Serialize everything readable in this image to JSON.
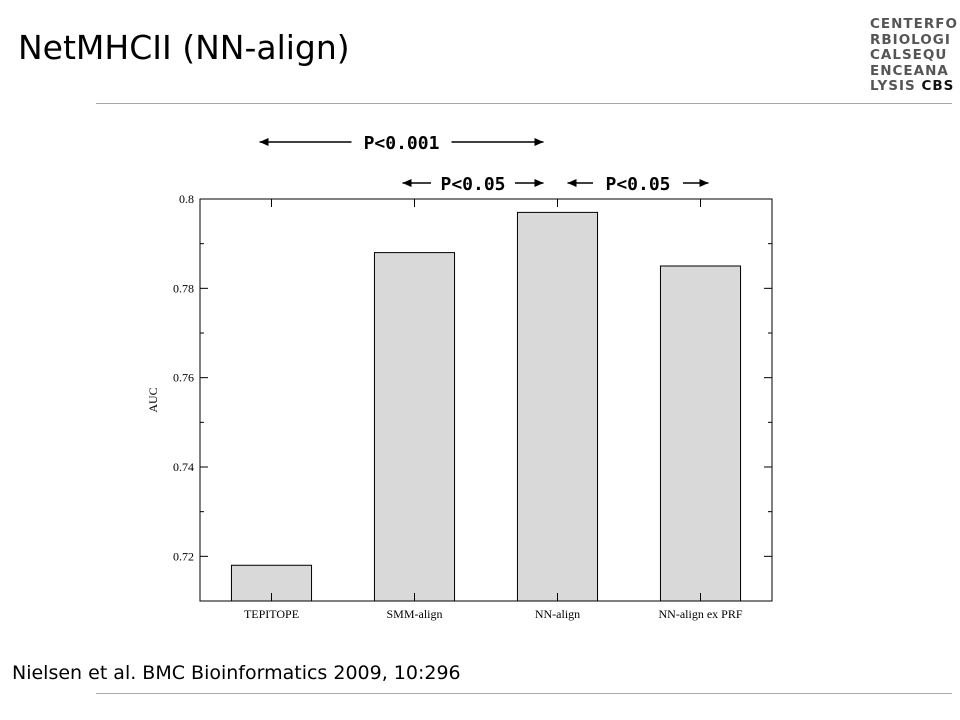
{
  "slide": {
    "title": "NetMHCII (NN-align)",
    "citation": "Nielsen et al. BMC Bioinformatics 2009, 10:296"
  },
  "logo": {
    "rows": [
      "CENTERFO",
      "RBIOLOGI",
      "CALSEQU",
      "ENCEANA"
    ],
    "last_row_prefix": "LYSIS",
    "last_row_brand": "CBS"
  },
  "chart_data": {
    "type": "bar",
    "categories": [
      "TEPITOPE",
      "SMM-align",
      "NN-align",
      "NN-align ex PRF"
    ],
    "values": [
      0.718,
      0.788,
      0.797,
      0.785
    ],
    "ylabel": "AUC",
    "xlabel": "",
    "ylim": [
      0.71,
      0.8
    ],
    "yticks": [
      "0.72",
      "0.74",
      "0.76",
      "0.78",
      "0.8"
    ],
    "bar_color": "#d9d9d9",
    "grid": false,
    "annotations": [
      {
        "text": "P<0.001",
        "from": "TEPITOPE",
        "to": "NN-align"
      },
      {
        "text": "P<0.05",
        "from": "SMM-align",
        "to": "NN-align"
      },
      {
        "text": "P<0.05",
        "from": "NN-align",
        "to": "NN-align ex PRF"
      }
    ]
  }
}
